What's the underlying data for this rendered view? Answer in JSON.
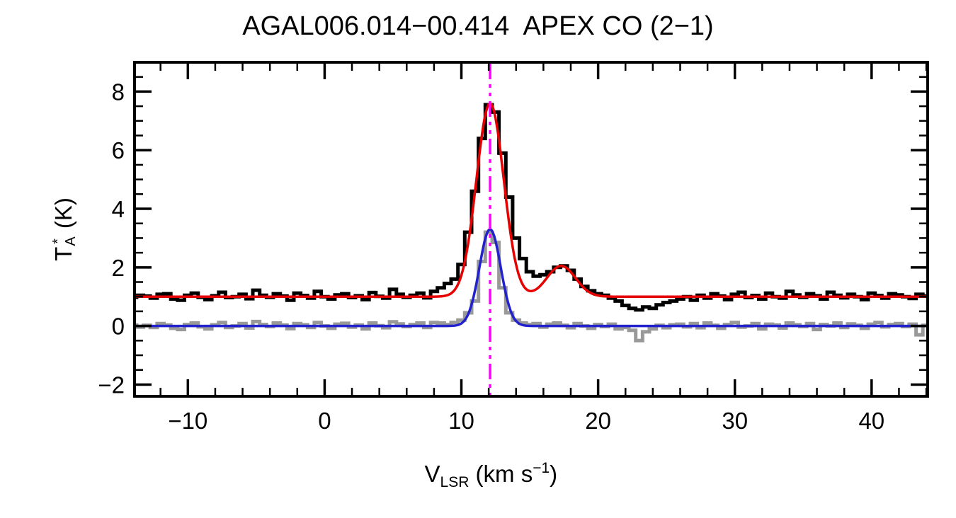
{
  "chart_data": {
    "type": "line",
    "title": "AGAL006.014−00.414  APEX CO (2−1)",
    "xlabel": "V_LSR (km s^−1)",
    "ylabel": "T_A^* (K)",
    "xlabel_parts": {
      "symbol": "V",
      "sub": "LSR",
      "mid": " (km s",
      "sup": "−1",
      "end": ")"
    },
    "ylabel_parts": {
      "symbol": "T",
      "sup": "*",
      "sub": "A",
      "end": " (K)"
    },
    "xlim": [
      -13.9,
      44.1
    ],
    "ylim": [
      -2.4,
      9.0
    ],
    "xticks": [
      -10,
      0,
      10,
      20,
      30,
      40
    ],
    "xtick_labels": [
      "−10",
      "0",
      "10",
      "20",
      "30",
      "40"
    ],
    "yticks": [
      -2,
      0,
      2,
      4,
      6,
      8
    ],
    "ytick_labels": [
      "−2",
      "0",
      "2",
      "4",
      "6",
      "8"
    ],
    "x_minor_step": 2,
    "y_minor_step": 0.5,
    "x_start": -14.0,
    "x_step": 0.5,
    "grid": false,
    "legend": "none",
    "series": [
      {
        "name": "spectrum-gray-histogram",
        "plot_type": "histogram",
        "color": "#999999",
        "line_width": 5,
        "values": [
          0.03,
          -0.04,
          0.02,
          -0.05,
          0.08,
          0.03,
          -0.08,
          -0.12,
          0.05,
          0.1,
          -0.03,
          -0.1,
          0.04,
          0.12,
          -0.05,
          0.0,
          0.08,
          -0.07,
          0.15,
          0.05,
          -0.02,
          0.1,
          0.03,
          -0.09,
          0.08,
          0.04,
          -0.05,
          0.12,
          0.0,
          -0.08,
          0.06,
          0.09,
          -0.04,
          0.03,
          -0.1,
          0.1,
          0.01,
          -0.06,
          0.14,
          0.07,
          -0.02,
          0.05,
          0.1,
          -0.05,
          0.12,
          0.1,
          0.05,
          0.12,
          0.2,
          0.45,
          0.85,
          2.2,
          3.2,
          2.85,
          1.3,
          0.45,
          0.2,
          0.1,
          0.05,
          0.08,
          -0.04,
          0.06,
          0.1,
          0.02,
          -0.06,
          0.08,
          0.0,
          -0.08,
          0.05,
          -0.02,
          0.06,
          -0.1,
          -0.05,
          -0.15,
          -0.5,
          -0.2,
          -0.1,
          0.02,
          -0.06,
          0.04,
          0.06,
          -0.03,
          0.08,
          -0.06,
          0.1,
          0.02,
          -0.08,
          0.05,
          0.12,
          -0.04,
          0.0,
          0.08,
          -0.1,
          0.06,
          0.03,
          -0.07,
          0.1,
          0.04,
          -0.02,
          0.08,
          -0.12,
          0.05,
          0.0,
          0.1,
          -0.05,
          0.07,
          0.02,
          -0.08,
          0.06,
          0.12,
          -0.03,
          0.05,
          0.08,
          -0.02,
          0.06,
          -0.3,
          0.02
        ]
      },
      {
        "name": "spectrum-black-histogram",
        "plot_type": "histogram",
        "color": "#000000",
        "line_width": 5,
        "values": [
          0.98,
          1.05,
          1.02,
          0.95,
          1.08,
          1.1,
          0.92,
          0.88,
          1.05,
          1.12,
          0.98,
          0.9,
          1.03,
          1.15,
          0.97,
          1.0,
          1.08,
          0.93,
          1.22,
          1.05,
          0.98,
          1.1,
          1.02,
          0.88,
          1.12,
          1.04,
          0.95,
          1.18,
          1.0,
          0.92,
          1.06,
          1.1,
          0.97,
          1.03,
          0.9,
          1.14,
          1.01,
          0.95,
          1.25,
          1.08,
          0.98,
          1.05,
          1.12,
          0.96,
          1.18,
          1.3,
          1.45,
          1.6,
          2.1,
          3.2,
          4.6,
          6.4,
          7.55,
          7.3,
          5.9,
          4.4,
          3.0,
          2.3,
          1.85,
          1.7,
          1.75,
          1.85,
          2.0,
          2.05,
          1.9,
          1.6,
          1.35,
          1.2,
          1.1,
          1.05,
          0.95,
          0.85,
          0.7,
          0.6,
          0.55,
          0.65,
          0.6,
          0.72,
          0.8,
          0.85,
          0.92,
          1.0,
          0.88,
          1.05,
          0.95,
          1.1,
          1.02,
          0.9,
          1.08,
          1.15,
          0.97,
          1.04,
          0.92,
          1.12,
          1.0,
          0.95,
          1.18,
          1.06,
          0.98,
          1.1,
          1.03,
          0.92,
          1.15,
          1.05,
          0.96,
          1.08,
          1.0,
          0.9,
          1.12,
          1.04,
          0.95,
          1.1,
          1.06,
          1.0,
          0.94,
          1.08,
          1.02
        ]
      },
      {
        "name": "gaussian-fit-blue",
        "plot_type": "gaussian-fit",
        "color": "#2222cc",
        "line_width": 3.5,
        "baseline": 0.0,
        "components": [
          {
            "amplitude": 3.3,
            "center": 12.1,
            "sigma": 0.78
          }
        ]
      },
      {
        "name": "gaussian-fit-red",
        "plot_type": "gaussian-fit",
        "color": "#e60000",
        "line_width": 3.5,
        "baseline": 1.0,
        "components": [
          {
            "amplitude": 6.6,
            "center": 12.1,
            "sigma": 1.0
          },
          {
            "amplitude": 1.05,
            "center": 17.3,
            "sigma": 1.05
          }
        ]
      }
    ],
    "vline": {
      "x": 12.1,
      "color": "#ff00ff",
      "line_style": "dash-dot",
      "line_width": 3.5
    }
  }
}
